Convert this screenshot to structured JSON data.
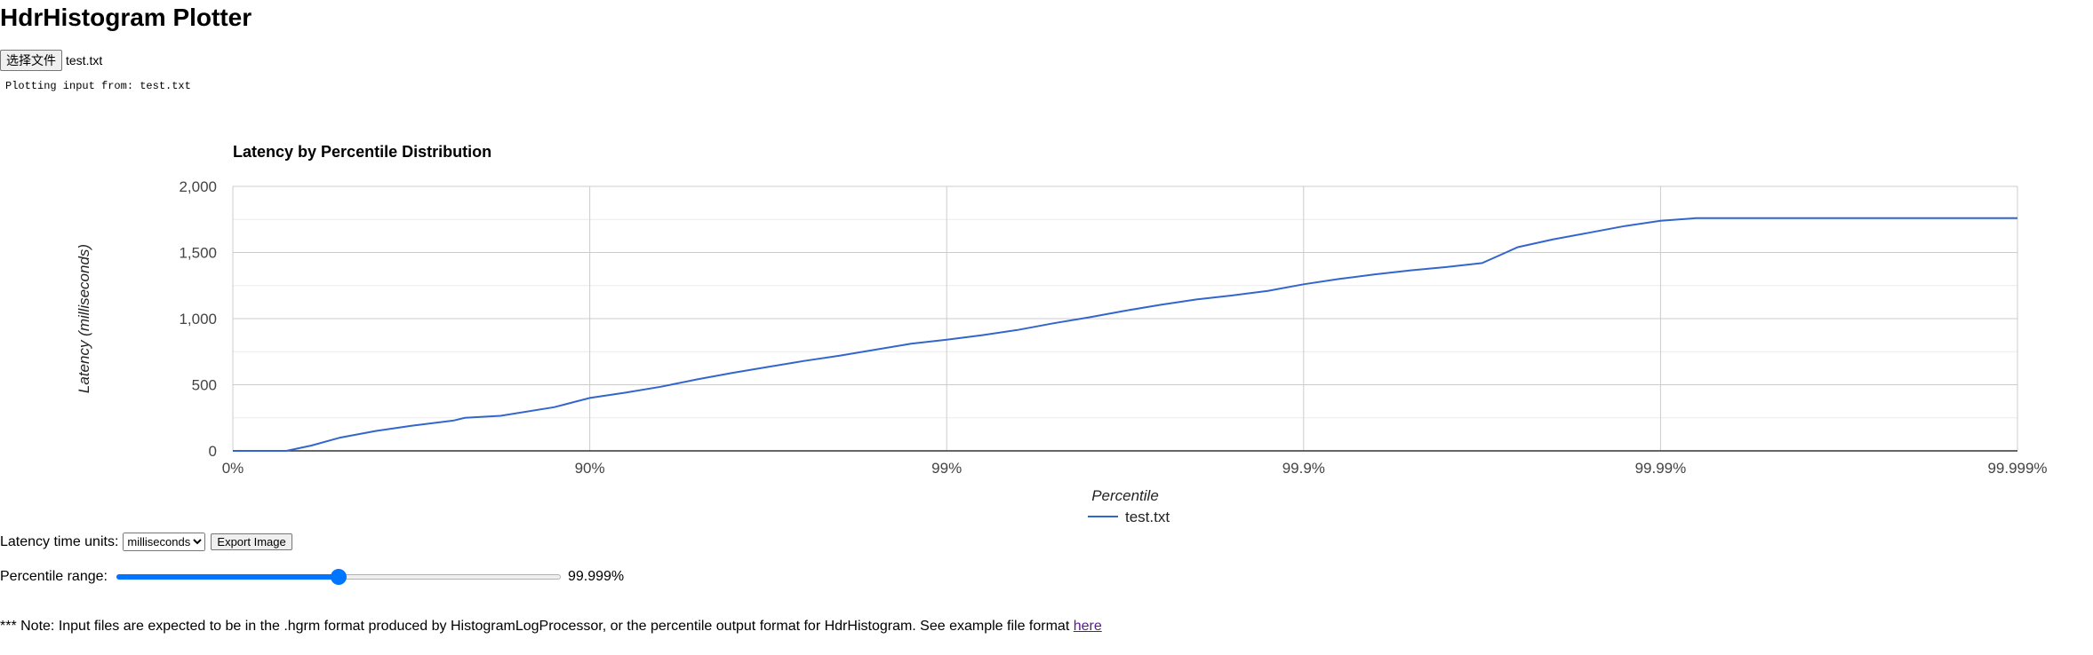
{
  "page": {
    "title": "HdrHistogram Plotter"
  },
  "file_input": {
    "button_label": "选择文件",
    "file_name": "test.txt"
  },
  "plot_message": "Plotting input from: test.txt",
  "controls": {
    "units_label": "Latency time units:",
    "units_selected": "milliseconds",
    "export_label": "Export Image"
  },
  "range": {
    "label": "Percentile range:",
    "value_text": "99.999%",
    "fraction": 0.5
  },
  "note": {
    "text": "*** Note: Input files are expected to be in the .hgrm format produced by HistogramLogProcessor, or the percentile output format for HdrHistogram. See example file format ",
    "link_text": "here"
  },
  "colors": {
    "series": "#3366cc",
    "accent": "#0075ff",
    "link": "#551a8b"
  },
  "chart_data": {
    "type": "line",
    "title": "Latency by Percentile Distribution",
    "xlabel": "Percentile",
    "ylabel": "Latency (milliseconds)",
    "x_scale": "nines",
    "x_ticks": [
      "0%",
      "90%",
      "99%",
      "99.9%",
      "99.99%",
      "99.999%"
    ],
    "y_ticks": [
      "0",
      "500",
      "1,000",
      "1,500",
      "2,000"
    ],
    "ylim": [
      0,
      2000
    ],
    "xlim_nines": [
      0,
      5
    ],
    "grid": true,
    "legend_position": "bottom",
    "series": [
      {
        "name": "test.txt",
        "x_nines": [
          0,
          0.1,
          0.15,
          0.22,
          0.3,
          0.4,
          0.5,
          0.62,
          0.65,
          0.75,
          0.9,
          1.0,
          1.1,
          1.2,
          1.3,
          1.4,
          1.5,
          1.6,
          1.7,
          1.8,
          1.9,
          2.0,
          2.1,
          2.2,
          2.3,
          2.4,
          2.5,
          2.6,
          2.7,
          2.8,
          2.9,
          3.0,
          3.1,
          3.2,
          3.3,
          3.4,
          3.5,
          3.55,
          3.6,
          3.7,
          3.8,
          3.9,
          4.0,
          4.1,
          4.15,
          4.22,
          4.5,
          4.8,
          5.0
        ],
        "y": [
          0,
          0,
          0,
          40,
          100,
          150,
          190,
          230,
          250,
          265,
          330,
          400,
          440,
          485,
          540,
          590,
          635,
          680,
          720,
          765,
          810,
          840,
          875,
          915,
          965,
          1010,
          1060,
          1105,
          1145,
          1175,
          1210,
          1260,
          1300,
          1335,
          1365,
          1390,
          1420,
          1480,
          1540,
          1600,
          1650,
          1700,
          1740,
          1760,
          1760,
          1760,
          1760,
          1760,
          1760
        ]
      }
    ]
  }
}
